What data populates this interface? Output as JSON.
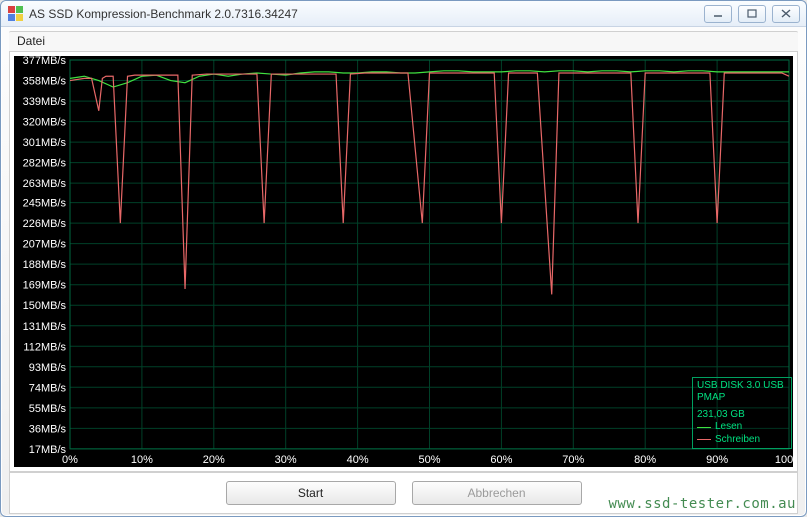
{
  "window": {
    "title": "AS SSD Kompression-Benchmark 2.0.7316.34247",
    "icon_colors": [
      "#d94040",
      "#50c050",
      "#5080e0",
      "#f0d040"
    ]
  },
  "menu": {
    "file": "Datei"
  },
  "chart": {
    "type": "line",
    "background": "#000000",
    "axis_text_color": "#ffffff",
    "axis_fontsize": 11,
    "grid_color": "#004028",
    "grid_major_color": "#006840",
    "x_label_suffix": "%",
    "x_min": 0,
    "x_max": 100,
    "x_ticks": [
      0,
      10,
      20,
      30,
      40,
      50,
      60,
      70,
      80,
      90,
      100
    ],
    "y_unit": "MB/s",
    "y_min": 17,
    "y_max": 377,
    "y_ticks": [
      377,
      358,
      339,
      320,
      301,
      282,
      263,
      245,
      226,
      207,
      188,
      169,
      150,
      131,
      112,
      93,
      74,
      55,
      36,
      17
    ],
    "series": [
      {
        "name": "Lesen",
        "color": "#40e040",
        "line_width": 1.2,
        "data": [
          [
            0,
            360
          ],
          [
            2,
            362
          ],
          [
            4,
            358
          ],
          [
            6,
            352
          ],
          [
            8,
            356
          ],
          [
            10,
            362
          ],
          [
            12,
            363
          ],
          [
            14,
            358
          ],
          [
            16,
            356
          ],
          [
            18,
            362
          ],
          [
            20,
            364
          ],
          [
            22,
            362
          ],
          [
            24,
            364
          ],
          [
            26,
            365
          ],
          [
            28,
            364
          ],
          [
            30,
            363
          ],
          [
            32,
            365
          ],
          [
            34,
            366
          ],
          [
            36,
            366
          ],
          [
            38,
            365
          ],
          [
            40,
            365
          ],
          [
            42,
            366
          ],
          [
            44,
            366
          ],
          [
            46,
            365
          ],
          [
            48,
            365
          ],
          [
            50,
            366
          ],
          [
            52,
            367
          ],
          [
            54,
            367
          ],
          [
            56,
            366
          ],
          [
            58,
            366
          ],
          [
            60,
            366
          ],
          [
            62,
            367
          ],
          [
            64,
            367
          ],
          [
            66,
            366
          ],
          [
            68,
            367
          ],
          [
            70,
            367
          ],
          [
            72,
            366
          ],
          [
            74,
            367
          ],
          [
            76,
            367
          ],
          [
            78,
            366
          ],
          [
            80,
            367
          ],
          [
            82,
            367
          ],
          [
            84,
            366
          ],
          [
            86,
            367
          ],
          [
            88,
            367
          ],
          [
            90,
            366
          ],
          [
            92,
            366
          ],
          [
            94,
            366
          ],
          [
            96,
            366
          ],
          [
            98,
            366
          ],
          [
            100,
            366
          ]
        ]
      },
      {
        "name": "Schreiben",
        "color": "#e86868",
        "line_width": 1.2,
        "data": [
          [
            0,
            358
          ],
          [
            2,
            360
          ],
          [
            3,
            360
          ],
          [
            4,
            330
          ],
          [
            4.5,
            360
          ],
          [
            5,
            362
          ],
          [
            6,
            362
          ],
          [
            7,
            226
          ],
          [
            8,
            362
          ],
          [
            9,
            363
          ],
          [
            11,
            363
          ],
          [
            13,
            363
          ],
          [
            15,
            363
          ],
          [
            16,
            165
          ],
          [
            17,
            363
          ],
          [
            19,
            364
          ],
          [
            21,
            364
          ],
          [
            23,
            364
          ],
          [
            25,
            364
          ],
          [
            26,
            364
          ],
          [
            27,
            226
          ],
          [
            28,
            364
          ],
          [
            30,
            364
          ],
          [
            32,
            364
          ],
          [
            34,
            364
          ],
          [
            36,
            364
          ],
          [
            37,
            364
          ],
          [
            38,
            226
          ],
          [
            39,
            364
          ],
          [
            41,
            365
          ],
          [
            43,
            365
          ],
          [
            45,
            365
          ],
          [
            47,
            365
          ],
          [
            49,
            226
          ],
          [
            50,
            365
          ],
          [
            52,
            365
          ],
          [
            54,
            365
          ],
          [
            56,
            365
          ],
          [
            58,
            365
          ],
          [
            59,
            365
          ],
          [
            60,
            226
          ],
          [
            61,
            365
          ],
          [
            63,
            365
          ],
          [
            65,
            365
          ],
          [
            67,
            160
          ],
          [
            68,
            365
          ],
          [
            70,
            365
          ],
          [
            72,
            365
          ],
          [
            74,
            365
          ],
          [
            76,
            365
          ],
          [
            78,
            365
          ],
          [
            79,
            226
          ],
          [
            80,
            365
          ],
          [
            82,
            365
          ],
          [
            84,
            365
          ],
          [
            86,
            365
          ],
          [
            88,
            365
          ],
          [
            89,
            365
          ],
          [
            90,
            226
          ],
          [
            91,
            365
          ],
          [
            93,
            365
          ],
          [
            95,
            365
          ],
          [
            97,
            365
          ],
          [
            99,
            365
          ],
          [
            100,
            362
          ]
        ]
      }
    ],
    "legend": {
      "device": "USB DISK 3.0 USB",
      "device2": "PMAP",
      "capacity": "231,03 GB",
      "border_color": "#00a060"
    }
  },
  "buttons": {
    "start": "Start",
    "abort": "Abbrechen"
  },
  "watermark": "www.ssd-tester.com.au"
}
